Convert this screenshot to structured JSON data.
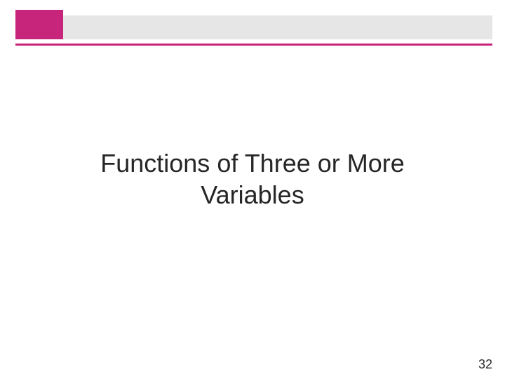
{
  "colors": {
    "accent": "#c7247c",
    "header_band": "#e6e6e6",
    "rule": "#c7247c",
    "text": "#262626",
    "background": "#ffffff"
  },
  "title": {
    "line1": "Functions of Three or More",
    "line2": "Variables",
    "fontsize": 36
  },
  "page_number": "32"
}
